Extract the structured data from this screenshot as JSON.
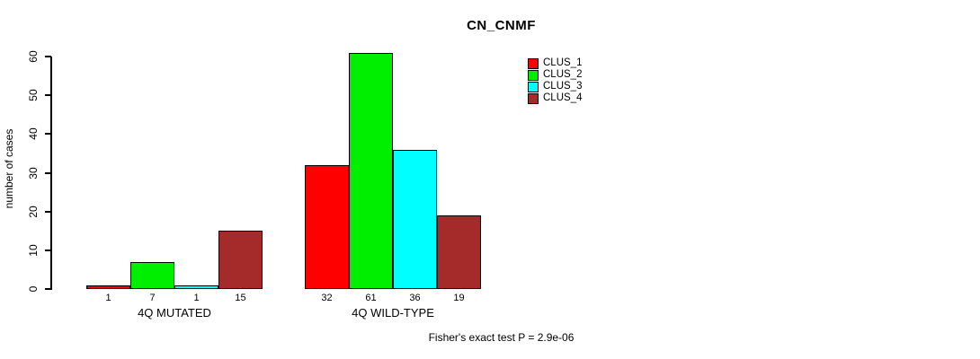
{
  "title": "CN_CNMF",
  "chart_data": {
    "type": "bar",
    "title": "CN_CNMF",
    "xlabel": "",
    "ylabel": "number of cases",
    "ylim": [
      0,
      61
    ],
    "yticks": [
      0,
      10,
      20,
      30,
      40,
      50,
      60
    ],
    "grid": false,
    "legend_position": "top-right",
    "categories": [
      "4Q MUTATED",
      "4Q WILD-TYPE"
    ],
    "series": [
      {
        "name": "CLUS_1",
        "color": "#FF0000",
        "values": [
          1,
          32
        ]
      },
      {
        "name": "CLUS_2",
        "color": "#00EE00",
        "values": [
          7,
          61
        ]
      },
      {
        "name": "CLUS_3",
        "color": "#00FFFF",
        "values": [
          1,
          36
        ]
      },
      {
        "name": "CLUS_4",
        "color": "#A52A2A",
        "values": [
          15,
          19
        ]
      }
    ],
    "bar_value_labels": [
      [
        "1",
        "7",
        "1",
        "15"
      ],
      [
        "32",
        "61",
        "36",
        "19"
      ]
    ],
    "annotation": "Fisher's exact test P = 2.9e-06"
  }
}
